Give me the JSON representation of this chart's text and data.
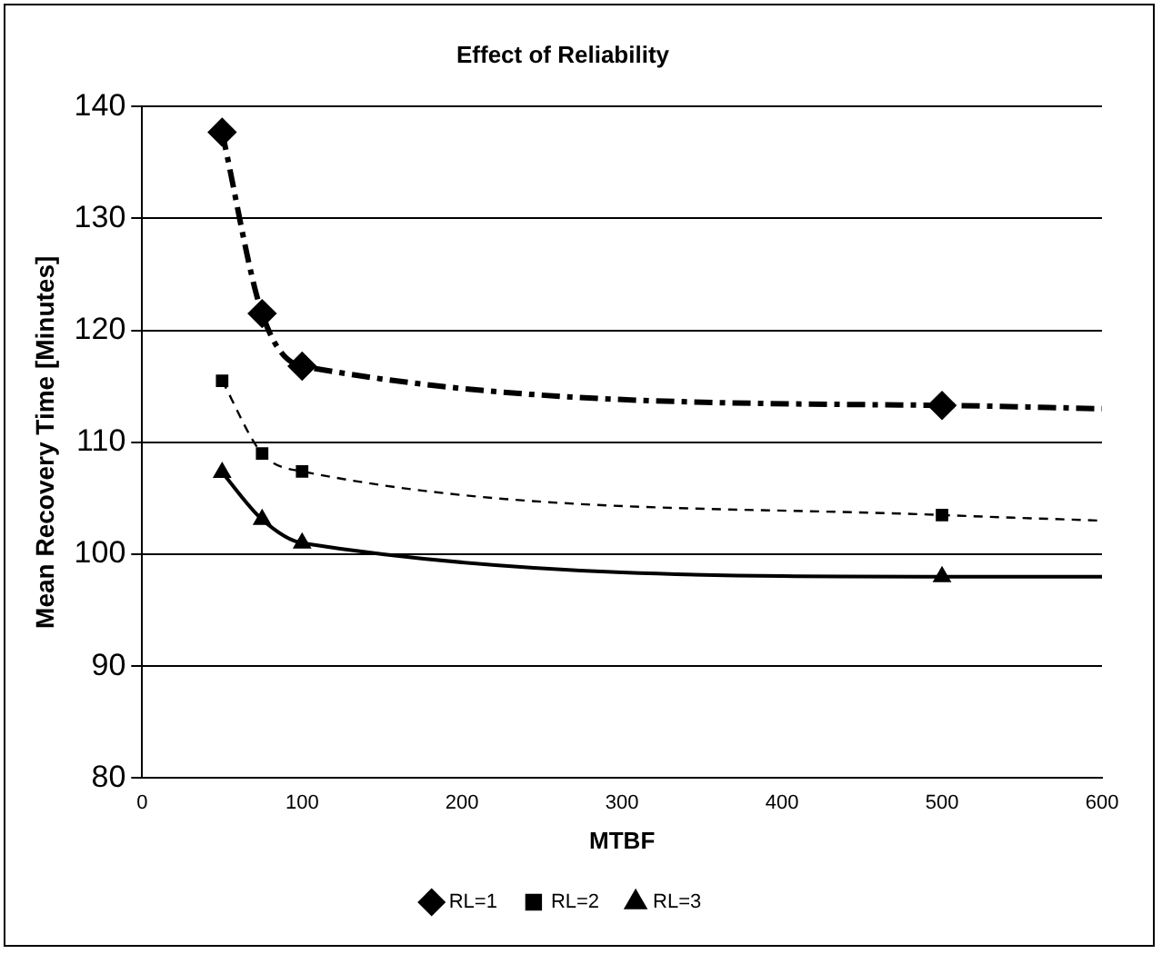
{
  "chart_data": {
    "type": "line",
    "title": "Effect of Reliability",
    "xlabel": "MTBF",
    "ylabel": "Mean Recovery Time [Minutes]",
    "xlim": [
      0,
      600
    ],
    "xticks": [
      0,
      100,
      200,
      300,
      400,
      500,
      600
    ],
    "ylim": [
      80,
      140
    ],
    "yticks": [
      80,
      90,
      100,
      110,
      120,
      130,
      140
    ],
    "grid": "y",
    "legend": "bottom",
    "x": [
      50,
      75,
      100,
      500,
      600
    ],
    "series": [
      {
        "name": "RL=1",
        "color": "#000000",
        "values": [
          137.7,
          121.5,
          116.8,
          113.3,
          113.0
        ],
        "marker": "diamond",
        "line_style": "dashdot"
      },
      {
        "name": "RL=2",
        "color": "#000000",
        "values": [
          115.5,
          109.0,
          107.4,
          103.5,
          103.0
        ],
        "marker": "square",
        "line_style": "dashed"
      },
      {
        "name": "RL=3",
        "color": "#000000",
        "values": [
          107.3,
          103.1,
          101.0,
          98.0,
          98.0
        ],
        "marker": "triangle",
        "line_style": "solid"
      }
    ]
  }
}
